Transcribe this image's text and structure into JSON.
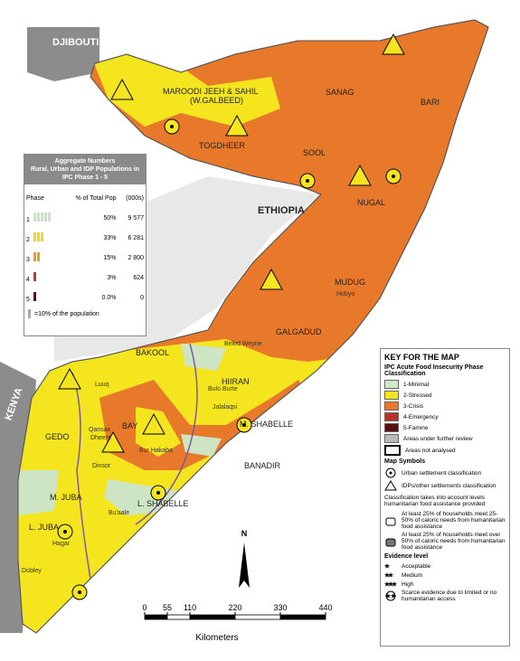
{
  "countries": [
    "DJIBOUTI",
    "ETHIOPIA",
    "KENYA"
  ],
  "regions": [
    "MAROODI JEEH & SAHIL",
    "(W.GALBEED)",
    "SANAG",
    "BARI",
    "TOGDHEER",
    "SOOL",
    "NUGAL",
    "MUDUG",
    "GALGADUD",
    "HIIRAN",
    "M. SHABELLE",
    "BANADIR",
    "L. SHABELLE",
    "BAY",
    "BAKOOL",
    "GEDO",
    "M. JUBA",
    "L. JUBA"
  ],
  "districts": [
    "Luuq",
    "Qansax",
    "Dheere",
    "Dinsor",
    "Bur Hakaba",
    "Bulo Burte",
    "Jalalaqsi",
    "Beled Weyne",
    "Hobyo",
    "Hagar",
    "Dobley",
    "Bu'aale"
  ],
  "aggregate": {
    "title": "Aggregate Numbers",
    "subtitle": "Rural, Urban and IDP Populations in IPC Phase 1 - 5",
    "columns": [
      "Phase",
      "% of Total Pop",
      "(000s)"
    ],
    "rows": [
      [
        "1",
        "50%",
        "9 577"
      ],
      [
        "2",
        "33%",
        "6 281"
      ],
      [
        "3",
        "15%",
        "2 800"
      ],
      [
        "4",
        "3%",
        "624"
      ],
      [
        "5",
        "0.0%",
        "0"
      ]
    ],
    "note": "=10% of the population"
  },
  "key": {
    "title": "KEY FOR THE MAP",
    "subtitle": "IPC Acute Food Insecurity Phase Classification",
    "phases": [
      "1-Minimal",
      "2-Stressed",
      "3-Crisis",
      "4-Emergency",
      "5-Famine",
      "Areas under further review",
      "Areas not analysed"
    ],
    "symbols_title": "Map Symbols",
    "symbols": [
      "Urban settlement classification",
      "IDPs/other settlements classification"
    ],
    "assistance_note": "Classification takes into account levels humanitarian food assistance provided",
    "assistance": [
      "At least 25% of households meet 25-50% of caloric needs from humanitarian food assistance",
      "At least 25% of households meet over 50% of caloric needs from humanitarian food assistance"
    ],
    "evidence_title": "Evidence level",
    "evidence": [
      "Acceptable",
      "Medium",
      "High"
    ],
    "scarce": "Scarce evidence due to limited or no humanitarian access"
  },
  "scale": {
    "ticks": [
      0,
      55,
      110,
      220,
      330,
      440
    ],
    "unit": "Kilometers",
    "north": "N"
  }
}
